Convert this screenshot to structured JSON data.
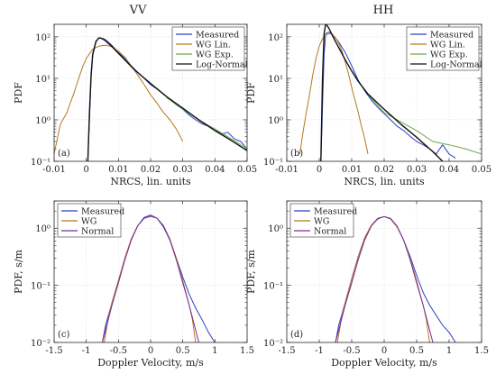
{
  "figure": {
    "col_titles": [
      "VV",
      "HH"
    ]
  },
  "colors": {
    "measured": "#2a40c8",
    "wg": "#b5771f",
    "wg_exp": "#6aa84a",
    "lognormal": "#111111",
    "normal": "#7a2f9a",
    "grid": "#d0d0d0",
    "axis": "#262626"
  },
  "chart_data": [
    {
      "id": "a",
      "type": "line",
      "panel_label": "(a)",
      "title": "VV",
      "xlabel": "NRCS, lin. units",
      "ylabel": "PDF",
      "xlim": [
        -0.01,
        0.05
      ],
      "ylim": [
        0.1,
        200
      ],
      "yscale": "log",
      "grid": true,
      "legend_position": "top-right",
      "xticks": [
        -0.01,
        0,
        0.01,
        0.02,
        0.03,
        0.04,
        0.05
      ],
      "xtick_labels": [
        "-0.01",
        "0",
        "0.01",
        "0.02",
        "0.03",
        "0.04",
        "0.05"
      ],
      "yticks": [
        0.1,
        1,
        10,
        100
      ],
      "ytick_labels": [
        "10⁻¹",
        "10⁰",
        "10¹",
        "10²"
      ],
      "series": [
        {
          "name": "Measured",
          "color_key": "measured",
          "x": [
            0.0005,
            0.001,
            0.0015,
            0.002,
            0.003,
            0.004,
            0.005,
            0.006,
            0.008,
            0.01,
            0.012,
            0.014,
            0.016,
            0.018,
            0.02,
            0.022,
            0.024,
            0.026,
            0.028,
            0.03,
            0.032,
            0.034,
            0.036,
            0.038,
            0.04,
            0.042,
            0.044,
            0.046,
            0.048,
            0.05
          ],
          "y": [
            0.1,
            1.0,
            10,
            35,
            75,
            95,
            92,
            85,
            62,
            42,
            30,
            20,
            14,
            10,
            7,
            5.5,
            4.2,
            3.1,
            2.3,
            1.8,
            1.3,
            1.0,
            0.8,
            0.7,
            0.6,
            0.45,
            0.5,
            0.35,
            0.3,
            0.2
          ]
        },
        {
          "name": "WG Lin.",
          "color_key": "wg",
          "x": [
            -0.01,
            -0.008,
            -0.006,
            -0.005,
            -0.004,
            -0.003,
            -0.002,
            -0.001,
            0,
            0.002,
            0.004,
            0.006,
            0.008,
            0.01,
            0.012,
            0.014,
            0.016,
            0.018,
            0.02,
            0.022,
            0.024,
            0.026,
            0.028,
            0.03
          ],
          "y": [
            0.15,
            0.8,
            1.5,
            2.5,
            4,
            7,
            12,
            20,
            30,
            50,
            60,
            63,
            58,
            45,
            32,
            20,
            12,
            7,
            4,
            2.5,
            1.5,
            1.0,
            0.6,
            0.3
          ]
        },
        {
          "name": "WG Exp.",
          "color_key": "wg_exp",
          "x": [
            0.025,
            0.03,
            0.035,
            0.04,
            0.045,
            0.05
          ],
          "y": [
            3.4,
            1.8,
            1.0,
            0.6,
            0.35,
            0.2
          ]
        },
        {
          "name": "Log-Normal",
          "color_key": "lognormal",
          "x": [
            0.0005,
            0.001,
            0.0015,
            0.002,
            0.003,
            0.004,
            0.005,
            0.006,
            0.008,
            0.01,
            0.015,
            0.02,
            0.025,
            0.03,
            0.035,
            0.04,
            0.045,
            0.05
          ],
          "y": [
            0.1,
            1.5,
            12,
            38,
            78,
            95,
            90,
            80,
            58,
            40,
            16,
            7.5,
            3.6,
            1.9,
            1.0,
            0.55,
            0.32,
            0.18
          ]
        }
      ]
    },
    {
      "id": "b",
      "type": "line",
      "panel_label": "(b)",
      "title": "HH",
      "xlabel": "NRCS, lin. units",
      "ylabel": "PDF",
      "xlim": [
        -0.01,
        0.05
      ],
      "ylim": [
        0.1,
        200
      ],
      "yscale": "log",
      "grid": true,
      "legend_position": "top-right",
      "xticks": [
        -0.01,
        0,
        0.01,
        0.02,
        0.03,
        0.04,
        0.05
      ],
      "xtick_labels": [
        "-0.01",
        "0",
        "0.01",
        "0.02",
        "0.03",
        "0.04",
        "0.05"
      ],
      "yticks": [
        0.1,
        1,
        10,
        100
      ],
      "ytick_labels": [
        "10⁻¹",
        "10⁰",
        "10¹",
        "10²"
      ],
      "series": [
        {
          "name": "Measured",
          "color_key": "measured",
          "x": [
            0.0005,
            0.001,
            0.0015,
            0.002,
            0.003,
            0.004,
            0.006,
            0.008,
            0.01,
            0.012,
            0.014,
            0.016,
            0.018,
            0.02,
            0.022,
            0.024,
            0.026,
            0.028,
            0.03,
            0.032,
            0.034,
            0.036,
            0.038,
            0.04,
            0.042
          ],
          "y": [
            0.1,
            2,
            40,
            120,
            130,
            115,
            75,
            42,
            20,
            9,
            5,
            3,
            2,
            1.4,
            1.0,
            0.7,
            0.55,
            0.4,
            0.3,
            0.25,
            0.2,
            0.15,
            0.25,
            0.15,
            0.12
          ]
        },
        {
          "name": "WG Lin.",
          "color_key": "wg",
          "x": [
            -0.006,
            -0.005,
            -0.004,
            -0.003,
            -0.002,
            -0.001,
            0,
            0.001,
            0.002,
            0.003,
            0.004,
            0.005,
            0.006,
            0.007,
            0.008,
            0.009,
            0.01,
            0.011,
            0.012,
            0.013,
            0.014,
            0.015
          ],
          "y": [
            0.15,
            0.5,
            1.5,
            4,
            12,
            30,
            60,
            90,
            110,
            120,
            115,
            95,
            70,
            45,
            25,
            13,
            6,
            3,
            1.5,
            0.7,
            0.35,
            0.15
          ]
        },
        {
          "name": "WG Exp.",
          "color_key": "wg_exp",
          "x": [
            0.015,
            0.02,
            0.025,
            0.03,
            0.035,
            0.04,
            0.045,
            0.05
          ],
          "y": [
            4,
            1.5,
            0.9,
            0.55,
            0.3,
            0.25,
            0.2,
            0.15
          ]
        },
        {
          "name": "Log-Normal",
          "color_key": "lognormal",
          "x": [
            0.0005,
            0.001,
            0.0015,
            0.002,
            0.003,
            0.004,
            0.006,
            0.008,
            0.01,
            0.012,
            0.015,
            0.02,
            0.025,
            0.03,
            0.035,
            0.038
          ],
          "y": [
            0.1,
            10,
            120,
            210,
            160,
            110,
            55,
            28,
            15,
            8.5,
            4.2,
            1.8,
            0.8,
            0.38,
            0.17,
            0.1
          ]
        }
      ]
    },
    {
      "id": "c",
      "type": "line",
      "panel_label": "(c)",
      "title": "",
      "xlabel": "Doppler Velocity, m/s",
      "ylabel": "PDF, s/m",
      "xlim": [
        -1.5,
        1.5
      ],
      "ylim": [
        0.01,
        3
      ],
      "yscale": "log",
      "grid": true,
      "legend_position": "top-left",
      "xticks": [
        -1.5,
        -1,
        -0.5,
        0,
        0.5,
        1,
        1.5
      ],
      "xtick_labels": [
        "-1.5",
        "-1",
        "-0.5",
        "0",
        "0.5",
        "1",
        "1.5"
      ],
      "yticks": [
        0.01,
        0.1,
        1
      ],
      "ytick_labels": [
        "10⁻²",
        "10⁻¹",
        "10⁰"
      ],
      "series": [
        {
          "name": "Measured",
          "color_key": "measured",
          "x": [
            -0.75,
            -0.7,
            -0.6,
            -0.5,
            -0.4,
            -0.3,
            -0.2,
            -0.1,
            0,
            0.1,
            0.2,
            0.3,
            0.4,
            0.5,
            0.6,
            0.7,
            0.8,
            0.9,
            1.0
          ],
          "y": [
            0.01,
            0.02,
            0.05,
            0.12,
            0.3,
            0.65,
            1.1,
            1.55,
            1.7,
            1.5,
            1.05,
            0.62,
            0.3,
            0.14,
            0.07,
            0.04,
            0.025,
            0.015,
            0.01
          ]
        },
        {
          "name": "WG",
          "color_key": "wg",
          "x": [
            -0.72,
            -0.65,
            -0.6,
            -0.5,
            -0.4,
            -0.3,
            -0.2,
            -0.1,
            0,
            0.1,
            0.2,
            0.3,
            0.4,
            0.5,
            0.6,
            0.65,
            0.7
          ],
          "y": [
            0.01,
            0.03,
            0.05,
            0.12,
            0.3,
            0.65,
            1.1,
            1.5,
            1.65,
            1.5,
            1.1,
            0.65,
            0.3,
            0.12,
            0.045,
            0.025,
            0.01
          ]
        },
        {
          "name": "Normal",
          "color_key": "normal",
          "x": [
            -0.75,
            -0.6,
            -0.5,
            -0.4,
            -0.3,
            -0.2,
            -0.1,
            0,
            0.1,
            0.2,
            0.3,
            0.4,
            0.5,
            0.6,
            0.75
          ],
          "y": [
            0.01,
            0.045,
            0.11,
            0.28,
            0.62,
            1.1,
            1.5,
            1.62,
            1.5,
            1.1,
            0.62,
            0.28,
            0.11,
            0.045,
            0.01
          ]
        }
      ]
    },
    {
      "id": "d",
      "type": "line",
      "panel_label": "(d)",
      "title": "",
      "xlabel": "Doppler Velocity, m/s",
      "ylabel": "PDF, s/m",
      "xlim": [
        -1.5,
        1.5
      ],
      "ylim": [
        0.01,
        3
      ],
      "yscale": "log",
      "grid": true,
      "legend_position": "top-left",
      "xticks": [
        -1.5,
        -1,
        -0.5,
        0,
        0.5,
        1,
        1.5
      ],
      "xtick_labels": [
        "-1.5",
        "-1",
        "-0.5",
        "0",
        "0.5",
        "1",
        "1.5"
      ],
      "yticks": [
        0.01,
        0.1,
        1
      ],
      "ytick_labels": [
        "10⁻²",
        "10⁻¹",
        "10⁰"
      ],
      "series": [
        {
          "name": "Measured",
          "color_key": "measured",
          "x": [
            -0.75,
            -0.7,
            -0.6,
            -0.5,
            -0.4,
            -0.3,
            -0.2,
            -0.1,
            0,
            0.1,
            0.2,
            0.3,
            0.4,
            0.5,
            0.6,
            0.7,
            0.8,
            0.9,
            1.0,
            1.1
          ],
          "y": [
            0.01,
            0.02,
            0.05,
            0.13,
            0.32,
            0.68,
            1.1,
            1.45,
            1.6,
            1.45,
            1.05,
            0.62,
            0.32,
            0.15,
            0.075,
            0.045,
            0.03,
            0.02,
            0.015,
            0.01
          ]
        },
        {
          "name": "WG",
          "color_key": "wg",
          "x": [
            -0.72,
            -0.65,
            -0.6,
            -0.5,
            -0.4,
            -0.3,
            -0.2,
            -0.1,
            0,
            0.1,
            0.2,
            0.3,
            0.4,
            0.5,
            0.6,
            0.65,
            0.7
          ],
          "y": [
            0.01,
            0.03,
            0.05,
            0.13,
            0.32,
            0.68,
            1.12,
            1.48,
            1.6,
            1.45,
            1.05,
            0.62,
            0.3,
            0.12,
            0.045,
            0.025,
            0.01
          ]
        },
        {
          "name": "Normal",
          "color_key": "normal",
          "x": [
            -0.75,
            -0.6,
            -0.5,
            -0.4,
            -0.3,
            -0.2,
            -0.1,
            0,
            0.1,
            0.2,
            0.3,
            0.4,
            0.5,
            0.6,
            0.75
          ],
          "y": [
            0.01,
            0.045,
            0.11,
            0.28,
            0.62,
            1.08,
            1.48,
            1.6,
            1.48,
            1.08,
            0.62,
            0.28,
            0.11,
            0.045,
            0.01
          ]
        }
      ]
    }
  ]
}
